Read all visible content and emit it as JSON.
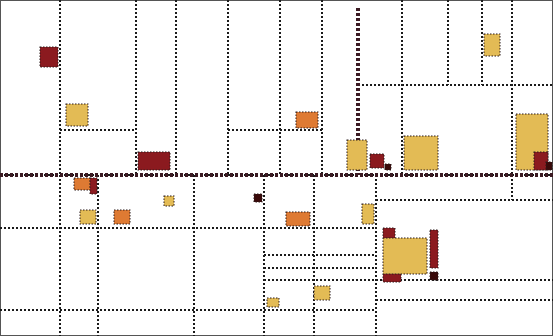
{
  "canvas": {
    "background": "#ffffff",
    "frame_color": "#555555"
  },
  "colors": {
    "line": "#1a1a1a",
    "thick_line": "#3b1a22",
    "yellow": "#e3bb55",
    "orange": "#de7a33",
    "red": "#8b1a1f",
    "dark": "#3a0a0a"
  },
  "content": {
    "text": []
  }
}
